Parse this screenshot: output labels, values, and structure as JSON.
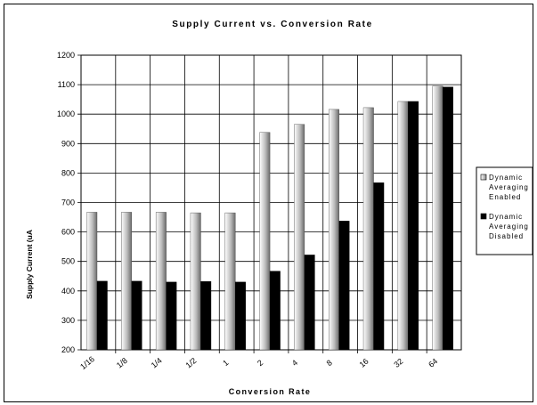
{
  "chart_data": {
    "type": "bar",
    "title": "Supply Current vs. Conversion Rate",
    "xlabel": "Conversion Rate",
    "ylabel": "Supply Current (uA",
    "ylim": [
      200,
      1200
    ],
    "ytick_step": 100,
    "grid": true,
    "legend_position": "right",
    "categories": [
      "1/16",
      "1/8",
      "1/4",
      "1/2",
      "1",
      "2",
      "4",
      "8",
      "16",
      "32",
      "64"
    ],
    "series": [
      {
        "name": "Dynamic Averaging Enabled",
        "name_lines": [
          "Dynamic",
          "Averaging",
          "Enabled"
        ],
        "color": "gradient-gray",
        "values": [
          667,
          667,
          667,
          665,
          665,
          938,
          965,
          1016,
          1022,
          1043,
          1095
        ]
      },
      {
        "name": "Dynamic Averaging Disabled",
        "name_lines": [
          "Dynamic",
          "Averaging",
          "Disabled"
        ],
        "color": "#000000",
        "values": [
          433,
          433,
          430,
          432,
          430,
          467,
          522,
          637,
          767,
          1043,
          1092
        ]
      }
    ]
  }
}
